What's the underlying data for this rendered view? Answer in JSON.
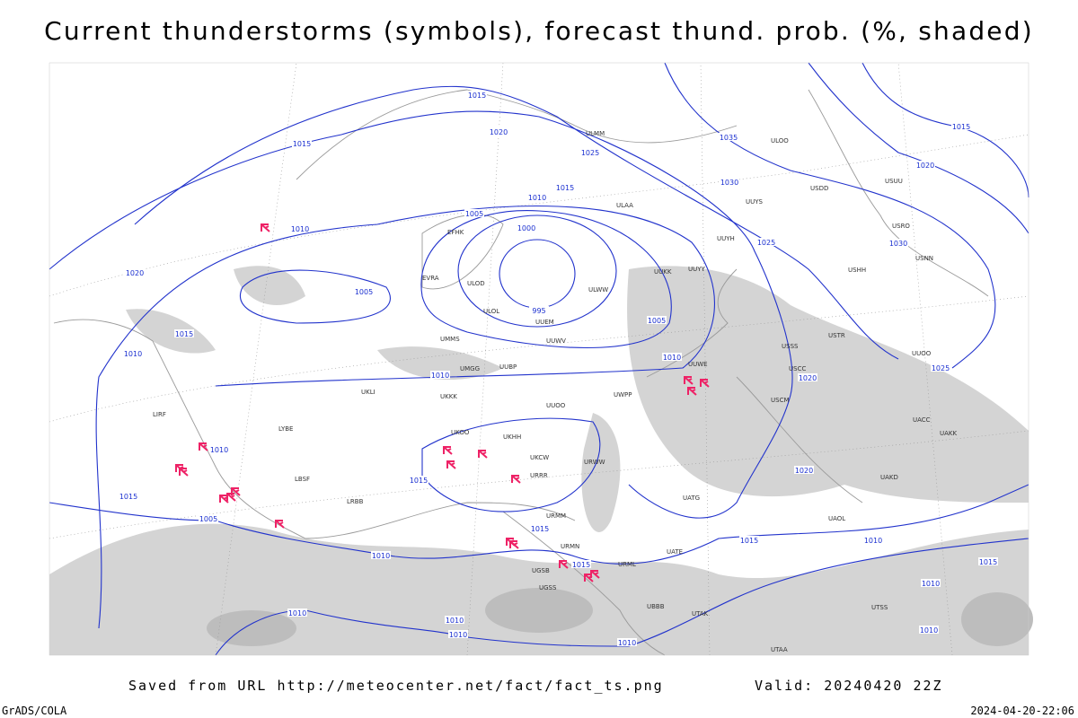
{
  "header": {
    "title": "Current thunderstorms (symbols), forecast thund. prob. (%, shaded)"
  },
  "map": {
    "isobar_labels": [
      "1015",
      "1020",
      "1025",
      "1035",
      "1015",
      "1020",
      "1030",
      "1015",
      "1015",
      "1010",
      "1005",
      "1000",
      "1010",
      "1025",
      "1030",
      "1020",
      "1005",
      "995",
      "1005",
      "1015",
      "1010",
      "1010",
      "1025",
      "1010",
      "1020",
      "1010",
      "1015",
      "1020",
      "1015",
      "1005",
      "1015",
      "1015",
      "1010",
      "1010",
      "1015",
      "1015",
      "1010",
      "1010",
      "1010",
      "1010",
      "1010",
      "1010"
    ],
    "station_labels": [
      "ULMM",
      "ULOO",
      "ULAA",
      "UUYS",
      "USDD",
      "USUU",
      "UUYH",
      "USRO",
      "USNN",
      "USHH",
      "ULWW",
      "ULOL",
      "UUEM",
      "UUWV",
      "ULOD",
      "EVRA",
      "EFHK",
      "UUKK",
      "UUYY",
      "USSS",
      "USCC",
      "USTR",
      "UUWE",
      "UUOO",
      "UUBP",
      "UMGG",
      "UMMS",
      "UKLI",
      "UKKK",
      "UUOO",
      "UWPP",
      "UKHH",
      "UKOO",
      "UKCW",
      "URRR",
      "URWW",
      "URMM",
      "URMN",
      "URML",
      "UGSB",
      "UGSS",
      "UATE",
      "UATG",
      "UAOL",
      "UACC",
      "UAKK",
      "UAKD",
      "UTAK",
      "UTSS",
      "UTAA",
      "UBBB",
      "LYBE",
      "LBSF",
      "LRBB",
      "LIRF",
      "USCM"
    ]
  },
  "footer": {
    "saved_from": "Saved from URL http://meteocenter.net/fact/fact_ts.png",
    "valid": "Valid: 20240420 22Z",
    "credit": "GrADS/COLA",
    "timestamp": "2024-04-20-22:06"
  }
}
